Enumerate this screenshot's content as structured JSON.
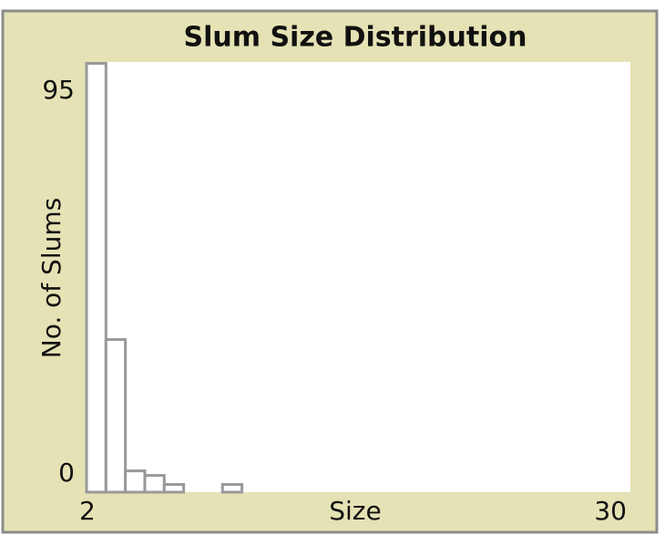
{
  "chart_data": {
    "type": "histogram",
    "title": "Slum Size Distribution",
    "x_label": "Size",
    "y_label": "No. of Slums",
    "bins": [
      2,
      3,
      4,
      5,
      6,
      7,
      8,
      9,
      10
    ],
    "values": [
      95,
      34,
      5,
      4,
      2,
      0,
      0,
      2
    ],
    "color": "#999999",
    "xlim": [
      2,
      30
    ],
    "ylim": [
      0,
      95
    ],
    "xticks": [
      2,
      30
    ],
    "yticks": [
      0,
      95
    ]
  }
}
